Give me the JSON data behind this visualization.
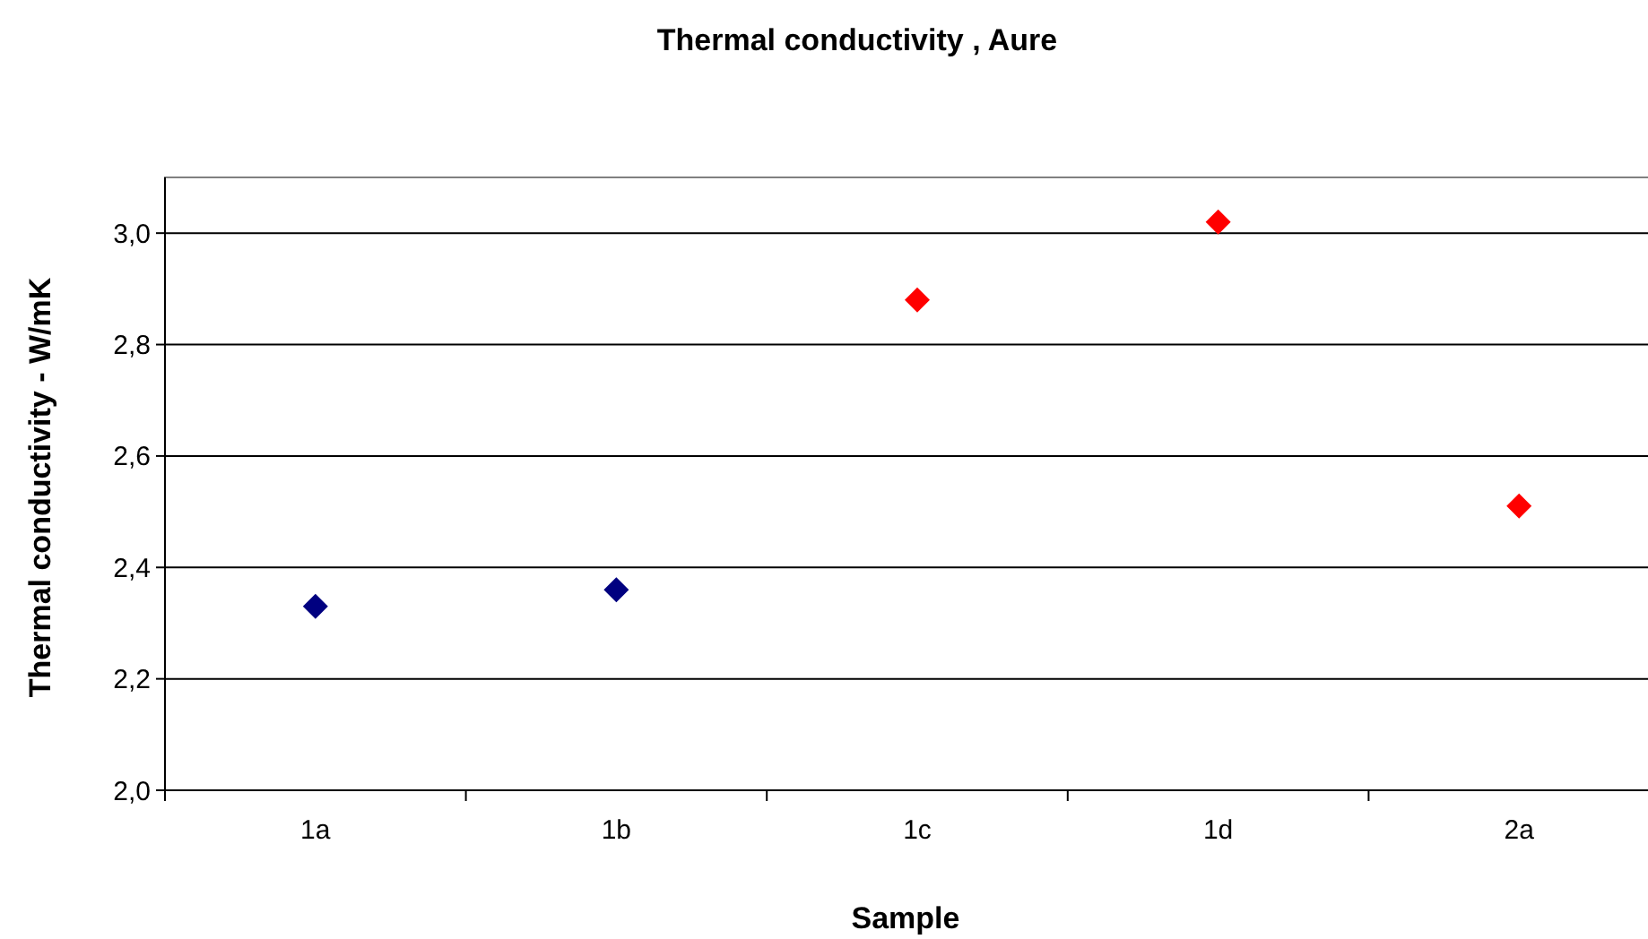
{
  "chart_data": {
    "type": "scatter",
    "title": "Thermal conductivity , Aure",
    "xlabel": "Sample",
    "ylabel": "Thermal conductivity - W/mK",
    "categories": [
      "1a",
      "1b",
      "1c",
      "1d",
      "2a"
    ],
    "values": [
      2.33,
      2.36,
      2.88,
      3.02,
      2.51
    ],
    "colors": [
      "#000080",
      "#000080",
      "#ff0000",
      "#ff0000",
      "#ff0000"
    ],
    "ylim": [
      2.0,
      3.1
    ],
    "yticks": [
      {
        "value": 2.0,
        "label": "2,0"
      },
      {
        "value": 2.2,
        "label": "2,2"
      },
      {
        "value": 2.4,
        "label": "2,4"
      },
      {
        "value": 2.6,
        "label": "2,6"
      },
      {
        "value": 2.8,
        "label": "2,8"
      },
      {
        "value": 3.0,
        "label": "3,0"
      }
    ],
    "grid": "y",
    "marker": "diamond"
  }
}
